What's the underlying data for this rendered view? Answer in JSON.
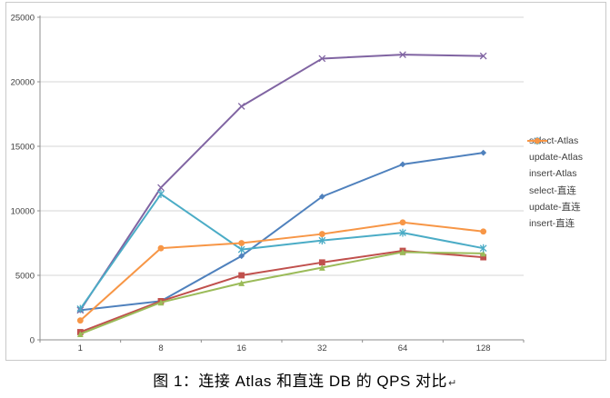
{
  "chart_data": {
    "type": "line",
    "title": "",
    "categories": [
      "1",
      "8",
      "16",
      "32",
      "64",
      "128"
    ],
    "y_axis": {
      "min": 0,
      "max": 25000,
      "step": 5000,
      "tick_labels": [
        "0",
        "5000",
        "10000",
        "15000",
        "20000",
        "25000"
      ]
    },
    "grid": true,
    "legend_position": "right",
    "series": [
      {
        "name": "select-Atlas",
        "color": "#4F81BD",
        "marker": "diamond",
        "values": [
          2300,
          3000,
          6500,
          11100,
          13600,
          14500
        ]
      },
      {
        "name": "update-Atlas",
        "color": "#C0504D",
        "marker": "square",
        "values": [
          600,
          3000,
          5000,
          6000,
          6900,
          6400
        ]
      },
      {
        "name": "insert-Atlas",
        "color": "#9BBB59",
        "marker": "triangle",
        "values": [
          450,
          2900,
          4400,
          5600,
          6800,
          6700
        ]
      },
      {
        "name": "select-直连",
        "color": "#8064A2",
        "marker": "x",
        "values": [
          2300,
          11800,
          18100,
          21800,
          22100,
          22000
        ]
      },
      {
        "name": "update-直连",
        "color": "#4BACC6",
        "marker": "asterisk",
        "values": [
          2400,
          11300,
          7000,
          7700,
          8300,
          7100
        ]
      },
      {
        "name": "insert-直连",
        "color": "#F79646",
        "marker": "circle",
        "values": [
          1500,
          7100,
          7500,
          8200,
          9100,
          8400
        ]
      }
    ]
  },
  "caption": {
    "text": "图 1：连接 Atlas 和直连 DB 的 QPS 对比",
    "paragraph_mark": "↵"
  },
  "colors": {
    "background": "#ffffff",
    "chart_border": "#c9c9c9",
    "grid": "#d4d4d4",
    "axis": "#8c8c8c",
    "tick_text": "#3f3f3f"
  }
}
